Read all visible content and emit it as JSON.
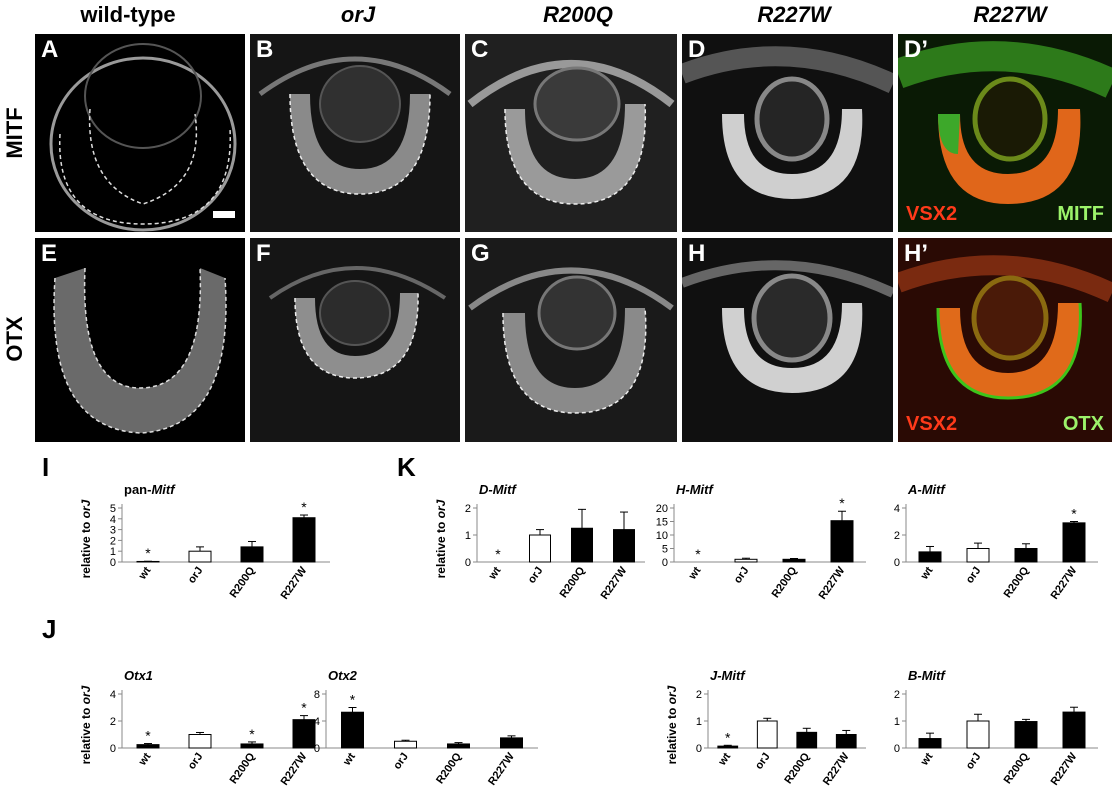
{
  "columns": [
    "wild-type",
    "orJ",
    "R200Q",
    "R227W",
    "R227W"
  ],
  "rows": [
    "MITF",
    "OTX"
  ],
  "panels_top": [
    "A",
    "B",
    "C",
    "D",
    "D’"
  ],
  "panels_bottom": [
    "E",
    "F",
    "G",
    "H",
    "H’"
  ],
  "overlay_top": {
    "left": "VSX2",
    "right": "MITF"
  },
  "overlay_bottom": {
    "left": "VSX2",
    "right": "OTX"
  },
  "sections": {
    "I": "I",
    "J": "J",
    "K": "K"
  },
  "ylabel": "relative to orJ",
  "chart_data": [
    {
      "id": "pan-Mitf",
      "type": "bar",
      "title": "pan-Mitf",
      "categories": [
        "wt",
        "orJ",
        "R200Q",
        "R227W"
      ],
      "values": [
        0.05,
        1.0,
        1.4,
        4.1
      ],
      "errors": [
        0.02,
        0.4,
        0.5,
        0.25
      ],
      "ylim": [
        0,
        5
      ],
      "yticks": [
        0,
        1,
        2,
        3,
        4,
        5
      ],
      "fills": [
        "black",
        "white",
        "black",
        "black"
      ],
      "stars": [
        true,
        false,
        false,
        true
      ]
    },
    {
      "id": "Otx1",
      "type": "bar",
      "title": "Otx1",
      "categories": [
        "wt",
        "orJ",
        "R200Q",
        "R227W"
      ],
      "values": [
        0.25,
        1.0,
        0.3,
        2.1
      ],
      "errors": [
        0.08,
        0.15,
        0.15,
        0.3
      ],
      "ylim": [
        0,
        4
      ],
      "yticks": [
        0,
        2,
        4
      ],
      "fills": [
        "black",
        "white",
        "black",
        "black"
      ],
      "stars": [
        true,
        false,
        true,
        true
      ]
    },
    {
      "id": "Otx2",
      "type": "bar",
      "title": "Otx2",
      "categories": [
        "wt",
        "orJ",
        "R200Q",
        "R227W"
      ],
      "values": [
        5.3,
        1.0,
        0.6,
        1.5
      ],
      "errors": [
        0.7,
        0.15,
        0.2,
        0.3
      ],
      "ylim": [
        0,
        8
      ],
      "yticks": [
        0,
        4,
        8
      ],
      "fills": [
        "black",
        "white",
        "black",
        "black"
      ],
      "stars": [
        true,
        false,
        false,
        false
      ]
    },
    {
      "id": "D-Mitf",
      "type": "bar",
      "title": "D-Mitf",
      "categories": [
        "wt",
        "orJ",
        "R200Q",
        "R227W"
      ],
      "values": [
        0,
        1.0,
        1.25,
        1.2
      ],
      "errors": [
        0,
        0.2,
        0.7,
        0.65
      ],
      "ylim": [
        0,
        2
      ],
      "yticks": [
        0,
        1,
        2
      ],
      "fills": [
        "black",
        "white",
        "black",
        "black"
      ],
      "stars": [
        true,
        false,
        false,
        false
      ]
    },
    {
      "id": "H-Mitf",
      "type": "bar",
      "title": "H-Mitf",
      "categories": [
        "wt",
        "orJ",
        "R200Q",
        "R227W"
      ],
      "values": [
        0,
        1.0,
        1.0,
        15.3
      ],
      "errors": [
        0,
        0.4,
        0.3,
        3.5
      ],
      "ylim": [
        0,
        20
      ],
      "yticks": [
        0,
        5,
        10,
        15,
        20
      ],
      "fills": [
        "black",
        "white",
        "black",
        "black"
      ],
      "stars": [
        true,
        false,
        false,
        true
      ]
    },
    {
      "id": "A-Mitf",
      "type": "bar",
      "title": "A-Mitf",
      "categories": [
        "wt",
        "orJ",
        "R200Q",
        "R227W"
      ],
      "values": [
        0.75,
        1.0,
        1.0,
        2.9
      ],
      "errors": [
        0.4,
        0.4,
        0.35,
        0.1
      ],
      "ylim": [
        0,
        4
      ],
      "yticks": [
        0,
        2,
        4
      ],
      "fills": [
        "black",
        "white",
        "black",
        "black"
      ],
      "stars": [
        false,
        false,
        false,
        true
      ]
    },
    {
      "id": "J-Mitf",
      "type": "bar",
      "title": "J-Mitf",
      "categories": [
        "wt",
        "orJ",
        "R200Q",
        "R227W"
      ],
      "values": [
        0.07,
        1.0,
        0.58,
        0.5
      ],
      "errors": [
        0.03,
        0.1,
        0.15,
        0.15
      ],
      "ylim": [
        0,
        2
      ],
      "yticks": [
        0,
        1,
        2
      ],
      "fills": [
        "black",
        "white",
        "black",
        "black"
      ],
      "stars": [
        true,
        false,
        false,
        false
      ]
    },
    {
      "id": "B-Mitf",
      "type": "bar",
      "title": "B-Mitf",
      "categories": [
        "wt",
        "orJ",
        "R200Q",
        "R227W"
      ],
      "values": [
        0.35,
        1.0,
        0.98,
        1.33
      ],
      "errors": [
        0.2,
        0.25,
        0.08,
        0.18
      ],
      "ylim": [
        0,
        2
      ],
      "yticks": [
        0,
        1,
        2
      ],
      "fills": [
        "black",
        "white",
        "black",
        "black"
      ],
      "stars": [
        false,
        false,
        false,
        false
      ]
    }
  ]
}
